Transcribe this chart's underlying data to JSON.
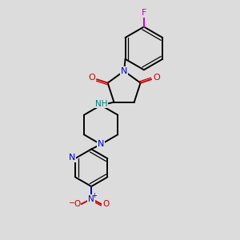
{
  "background_color": "#dcdcdc",
  "bond_color": "#000000",
  "N_color": "#0000cc",
  "O_color": "#cc0000",
  "F_color": "#cc00cc",
  "H_color": "#008080",
  "figsize": [
    3.0,
    3.0
  ],
  "dpi": 100,
  "xlim": [
    0,
    10
  ],
  "ylim": [
    0,
    10
  ]
}
